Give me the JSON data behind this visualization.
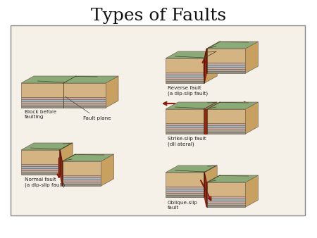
{
  "title": "Types of Faults",
  "title_fontsize": 18,
  "title_font": "DejaVu Serif",
  "bg_color": "#ffffff",
  "border_color": "#888888",
  "diagram_bg": "#f5f0e8",
  "green_top": "#8aaa78",
  "tan_front": "#d4b483",
  "tan_side": "#c8a060",
  "blue_layer": "#9ab8c8",
  "pink_layer": "#c8a8a0",
  "gray_layer": "#b0a898",
  "dark_layer": "#909088",
  "fault_red": "#8b1a0a",
  "crack_color": "#444422",
  "label_color": "#222222",
  "label_fontsize": 5.2,
  "labels": {
    "block_before": "Block before\nfaulting",
    "fault_plane": "Fault plane",
    "normal_fault": "Normal fault\n(a dip-slip fault)",
    "reverse_fault": "Reverse fault\n(a dip-slip fault)",
    "strike_slip": "Strike-slip fault\n(dil ateral)",
    "oblique_slip": "Oblique-slip\nfault"
  }
}
